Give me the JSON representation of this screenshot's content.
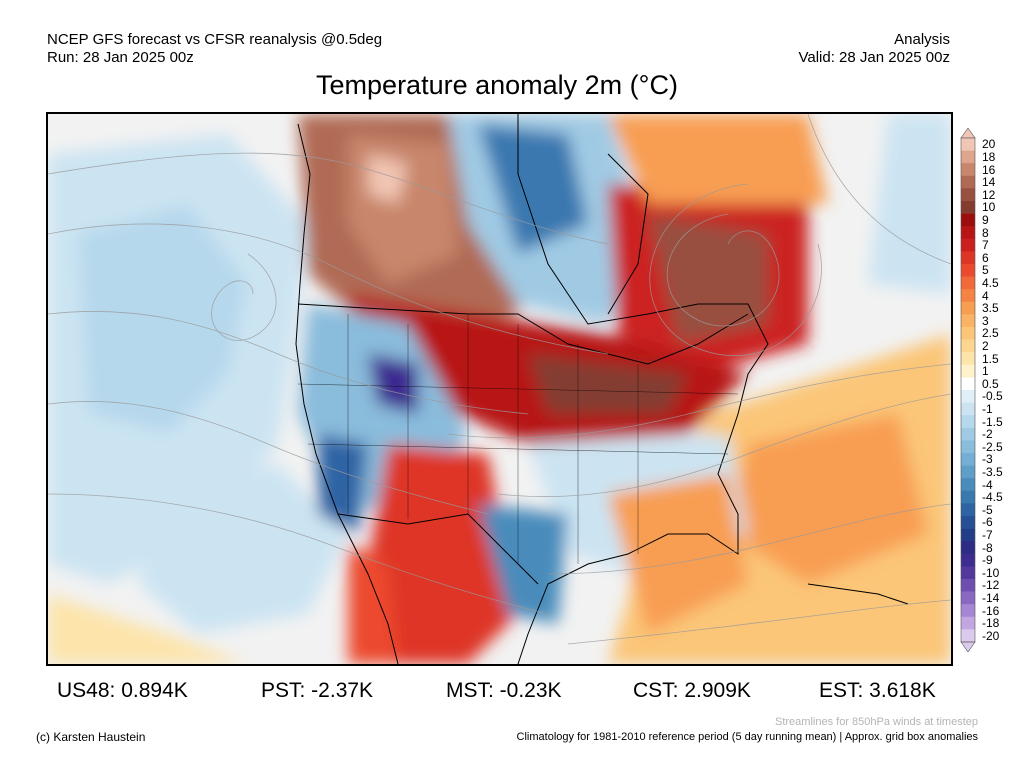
{
  "header": {
    "left_line1": "NCEP GFS forecast vs CFSR reanalysis @0.5deg",
    "left_line2": "Run: 28 Jan 2025 00z",
    "right_line1": "Analysis",
    "right_line2": "Valid: 28 Jan 2025 00z"
  },
  "title": "Temperature anomaly 2m (°C)",
  "colorbar": {
    "labels": [
      "20",
      "18",
      "16",
      "14",
      "12",
      "10",
      "9",
      "8",
      "7",
      "6",
      "5",
      "4.5",
      "4",
      "3.5",
      "3",
      "2.5",
      "2",
      "1.5",
      "1",
      "0.5",
      "-0.5",
      "-1",
      "-1.5",
      "-2",
      "-2.5",
      "-3",
      "-3.5",
      "-4",
      "-4.5",
      "-5",
      "-6",
      "-7",
      "-8",
      "-9",
      "-10",
      "-12",
      "-14",
      "-16",
      "-18",
      "-20"
    ],
    "colors": [
      "#f2c6b4",
      "#dea48c",
      "#c8866c",
      "#b06a54",
      "#985040",
      "#843c30",
      "#9c0e0e",
      "#b81616",
      "#cc2020",
      "#de3626",
      "#ec4a2e",
      "#f26838",
      "#f58444",
      "#f89e52",
      "#fab264",
      "#fbc678",
      "#fcd690",
      "#fde4aa",
      "#fef2cc",
      "#ffffff",
      "#e0eef8",
      "#cce4f2",
      "#b6d8ec",
      "#a0cae4",
      "#8abcdc",
      "#74aed4",
      "#5e9ec8",
      "#4a8cbc",
      "#3a78b0",
      "#2e64a4",
      "#264f96",
      "#223c88",
      "#2c2c84",
      "#3e2c90",
      "#54389e",
      "#6e4eb0",
      "#8a68c2",
      "#a686d2",
      "#c2a6e0",
      "#dccaee"
    ]
  },
  "stats": [
    {
      "label": "US48: 0.894K"
    },
    {
      "label": "PST: -2.37K"
    },
    {
      "label": "MST: -0.23K"
    },
    {
      "label": "CST: 2.909K"
    },
    {
      "label": "EST: 3.618K"
    }
  ],
  "footer": {
    "credit": "(c) Karsten Haustein",
    "streamlines_note": "Streamlines for 850hPa winds at timestep",
    "climatology_note": "Climatology for 1981-2010 reference period (5 day running mean) | Approx. grid box anomalies"
  }
}
